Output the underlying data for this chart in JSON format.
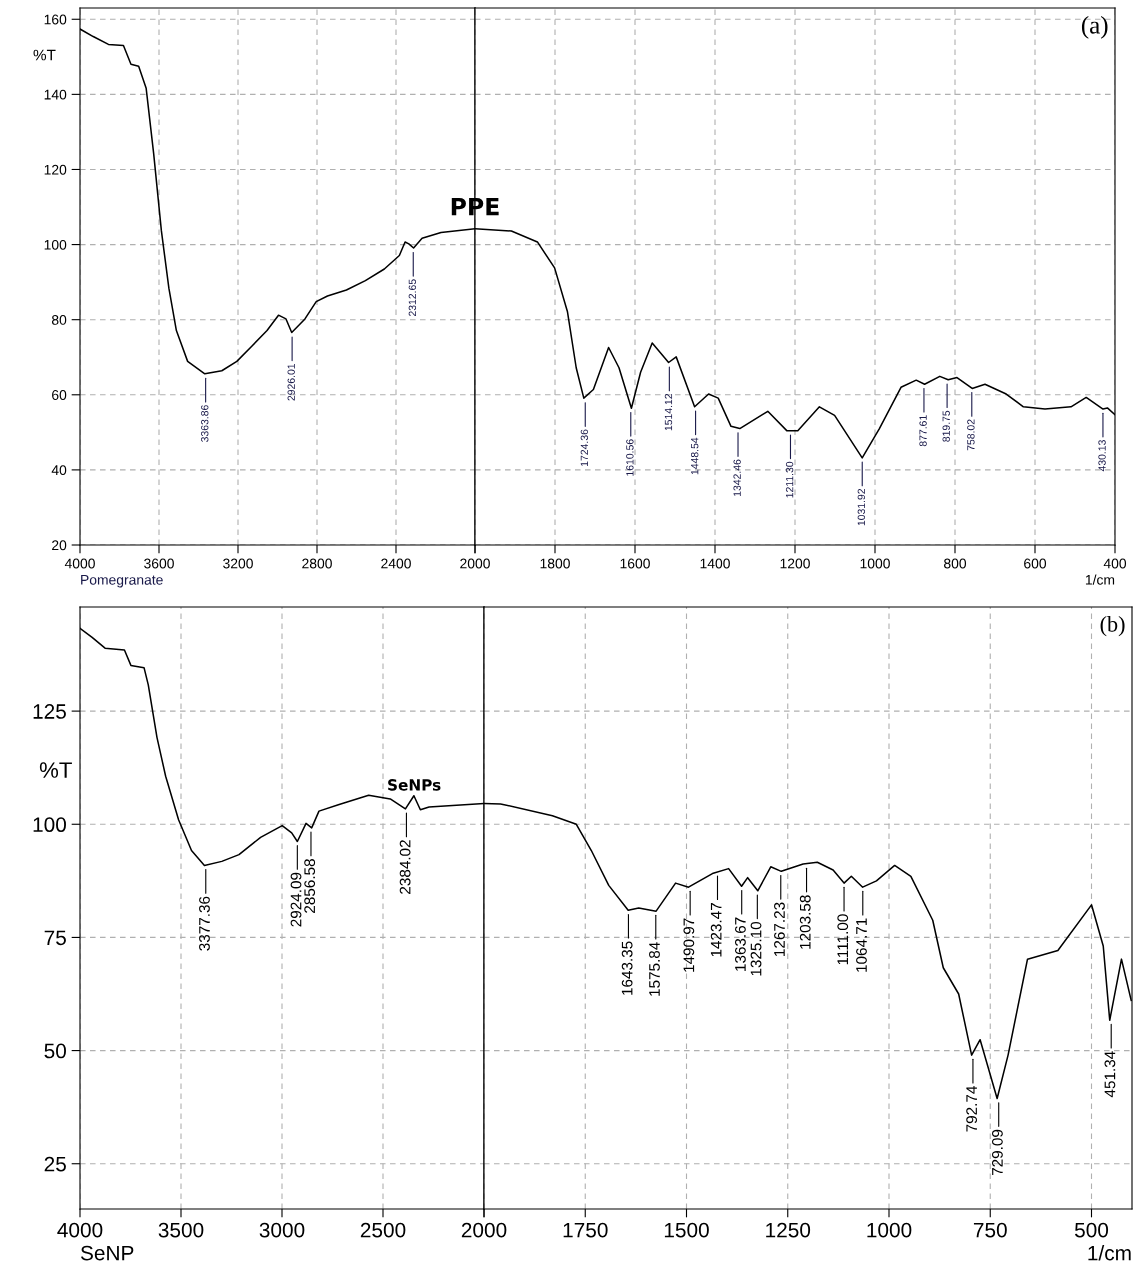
{
  "chart_data": [
    {
      "type": "line",
      "ylabel": "%T",
      "xlim": [
        4000,
        2000
      ],
      "ylim": [
        20,
        163
      ],
      "xticks": [
        4000,
        3600,
        3200,
        2800,
        2400,
        2000
      ],
      "yticks": [
        20,
        40,
        60,
        80,
        100,
        120,
        140,
        160
      ],
      "grid": true,
      "series": [
        {
          "color": "#000000",
          "x": [
            4000,
            3933,
            3856,
            3780,
            3742,
            3703,
            3665,
            3627,
            3588,
            3550,
            3512,
            3455,
            3368,
            3282,
            3206,
            3129,
            3053,
            2995,
            2957,
            2928,
            2861,
            2804,
            2747,
            2651,
            2555,
            2459,
            2383,
            2354,
            2335,
            2311,
            2268,
            2172,
            2000
          ],
          "values": [
            157.4,
            155.4,
            153.3,
            153,
            148,
            147.5,
            141.6,
            124.2,
            103.7,
            88.4,
            77.1,
            68.9,
            65.6,
            66.4,
            68.9,
            73,
            77.1,
            81.2,
            80.2,
            76.6,
            80.2,
            84.8,
            86.3,
            87.9,
            90.4,
            93.5,
            97.1,
            100.7,
            100.2,
            99.1,
            101.7,
            103.2,
            104.2
          ]
        }
      ],
      "annotations": [
        "Pomegranate",
        {
          "text": "3363.86",
          "x": 3363.86,
          "y": 65.5
        },
        {
          "text": "2926.01",
          "x": 2926.01,
          "y": 76.5
        },
        {
          "text": "2312.65",
          "x": 2312.65,
          "y": 99
        }
      ]
    },
    {
      "type": "line",
      "xlabel": "1/cm",
      "xlim": [
        2000,
        400
      ],
      "ylim": [
        20,
        163
      ],
      "tick_labels": "x",
      "xticks": [
        {
          "value": 2000,
          "label": null
        },
        1800,
        1600,
        1400,
        1200,
        1000,
        800,
        600,
        400
      ],
      "yticks": [
        20,
        40,
        60,
        80,
        100,
        120,
        140,
        160
      ],
      "grid": true,
      "series": [
        {
          "color": "#000000",
          "x": [
            2000,
            1909,
            1844,
            1801,
            1769,
            1747,
            1728,
            1704,
            1666,
            1640,
            1609,
            1586,
            1557,
            1516,
            1497,
            1451,
            1416,
            1392,
            1360,
            1338,
            1268,
            1220,
            1193,
            1139,
            1101,
            1032,
            989,
            935,
            897,
            876,
            838,
            817,
            795,
            757,
            725,
            672,
            629,
            575,
            510,
            472,
            430,
            419,
            400
          ],
          "values": [
            104.2,
            103.6,
            100.7,
            93.8,
            82.2,
            67.2,
            59.1,
            61.4,
            72.6,
            67.2,
            56.4,
            66,
            73.8,
            68.6,
            70.1,
            56.8,
            60.2,
            59.1,
            51.6,
            51,
            55.6,
            50.4,
            50.4,
            56.8,
            54.5,
            43.2,
            51,
            62,
            63.9,
            62.8,
            64.9,
            64,
            64.6,
            61.7,
            62.8,
            60.2,
            56.8,
            56.2,
            56.8,
            59.3,
            56.2,
            56.5,
            54.7
          ]
        }
      ],
      "annotations": [
        "PPE",
        "(a)",
        {
          "text": "1724.36",
          "x": 1724.36,
          "y": 59
        },
        {
          "text": "1610.56",
          "x": 1610.56,
          "y": 56.4
        },
        {
          "text": "1514.12",
          "x": 1514.12,
          "y": 68.5
        },
        {
          "text": "1448.54",
          "x": 1448.54,
          "y": 56.8
        },
        {
          "text": "1342.46",
          "x": 1342.46,
          "y": 51
        },
        {
          "text": "1211.30",
          "x": 1211.3,
          "y": 50.4
        },
        {
          "text": "1031.92",
          "x": 1031.92,
          "y": 43.2
        },
        {
          "text": "877.61",
          "x": 877.61,
          "y": 62.8
        },
        {
          "text": "819.75",
          "x": 819.75,
          "y": 64
        },
        {
          "text": "758.02",
          "x": 758.02,
          "y": 61.7
        },
        {
          "text": "430.13",
          "x": 430.13,
          "y": 56.2
        }
      ]
    },
    {
      "type": "line",
      "ylabel": "%T",
      "xlim": [
        4000,
        2000
      ],
      "ylim": [
        15,
        148
      ],
      "xticks": [
        4000,
        3500,
        3000,
        2500,
        2000
      ],
      "yticks": [
        25,
        50,
        75,
        100,
        125
      ],
      "grid": true,
      "series": [
        {
          "color": "#000000",
          "x": [
            4000,
            3940,
            3876,
            3780,
            3748,
            3683,
            3662,
            3619,
            3576,
            3512,
            3448,
            3384,
            3298,
            3213,
            3106,
            2999,
            2952,
            2924,
            2881,
            2853,
            2817,
            2721,
            2571,
            2464,
            2389,
            2347,
            2315,
            2272,
            2000
          ],
          "values": [
            143.3,
            141.3,
            138.9,
            138.5,
            135.1,
            134.6,
            130.8,
            119.2,
            110.6,
            101,
            94.2,
            90.9,
            91.8,
            93.3,
            97.1,
            99.7,
            98.1,
            96.2,
            100.2,
            99.2,
            102.9,
            104.3,
            106.4,
            105.6,
            103.4,
            106.3,
            103.2,
            103.8,
            104.6
          ]
        }
      ],
      "annotations": [
        "SeNP",
        "SeNPs",
        {
          "text": "3377.36",
          "x": 3377.36,
          "y": 90.9
        },
        {
          "text": "2924.09",
          "x": 2924.09,
          "y": 96.2
        },
        {
          "text": "2856.58",
          "x": 2856.58,
          "y": 99.2
        },
        {
          "text": "2384.02",
          "x": 2384.02,
          "y": 103.4
        }
      ]
    },
    {
      "type": "line",
      "xlabel": "1/cm",
      "xlim": [
        2000,
        400
      ],
      "ylim": [
        15,
        148
      ],
      "tick_labels": "x",
      "xticks": [
        {
          "value": 2000,
          "label": null
        },
        1750,
        1500,
        1250,
        1000,
        750,
        500
      ],
      "yticks": [
        25,
        50,
        75,
        100,
        125
      ],
      "grid": true,
      "series": [
        {
          "color": "#000000",
          "x": [
            2000,
            1959,
            1831,
            1772,
            1735,
            1692,
            1644,
            1618,
            1575,
            1527,
            1495,
            1436,
            1396,
            1364,
            1349,
            1324,
            1292,
            1266,
            1212,
            1177,
            1138,
            1111,
            1093,
            1065,
            1031,
            986,
            946,
            892,
            866,
            828,
            796,
            775,
            733,
            706,
            658,
            583,
            500,
            471,
            455,
            426,
            402
          ],
          "values": [
            104.6,
            104.5,
            101.9,
            100,
            94.2,
            86.5,
            81,
            81.5,
            80.8,
            87,
            86.1,
            89.1,
            90.2,
            86.3,
            88.2,
            85.3,
            90.6,
            89.6,
            91.2,
            91.6,
            89.9,
            87,
            88.5,
            86.1,
            87.5,
            90.9,
            88.5,
            78.8,
            68.3,
            62.5,
            49,
            52.4,
            39.4,
            49,
            70.2,
            72.1,
            82.2,
            73.1,
            56.7,
            70.2,
            61.1
          ]
        }
      ],
      "annotations": [
        "(b)",
        {
          "text": "1643.35",
          "x": 1643.35,
          "y": 81
        },
        {
          "text": "1575.84",
          "x": 1575.84,
          "y": 80.8
        },
        {
          "text": "1490.97",
          "x": 1490.97,
          "y": 86.1
        },
        {
          "text": "1423.47",
          "x": 1423.47,
          "y": 89.5
        },
        {
          "text": "1363.67",
          "x": 1363.67,
          "y": 86.3
        },
        {
          "text": "1325.10",
          "x": 1325.1,
          "y": 85.3
        },
        {
          "text": "1267.23",
          "x": 1267.23,
          "y": 89.6
        },
        {
          "text": "1203.58",
          "x": 1203.58,
          "y": 91.2
        },
        {
          "text": "1111.00",
          "x": 1111.0,
          "y": 87
        },
        {
          "text": "1064.71",
          "x": 1064.71,
          "y": 86.1
        },
        {
          "text": "792.74",
          "x": 792.74,
          "y": 49
        },
        {
          "text": "729.09",
          "x": 729.09,
          "y": 39.4
        },
        {
          "text": "451.34",
          "x": 451.34,
          "y": 56.7
        }
      ]
    }
  ]
}
